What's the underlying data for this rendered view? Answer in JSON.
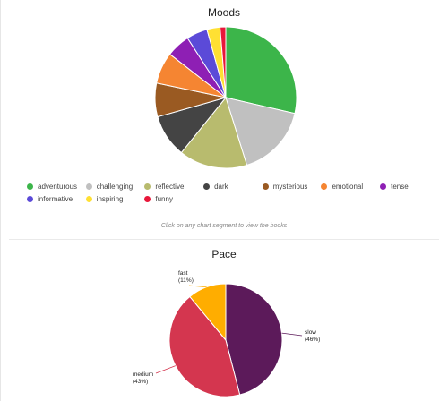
{
  "moods": {
    "title": "Moods",
    "hint": "Click on any chart segment to view the books"
  },
  "pace": {
    "title": "Pace"
  },
  "chart_data": [
    {
      "type": "pie",
      "title": "Moods",
      "legend_placement": "bottom",
      "categories": [
        "adventurous",
        "challenging",
        "reflective",
        "dark",
        "mysterious",
        "emotional",
        "tense",
        "informative",
        "inspiring",
        "funny"
      ],
      "values": [
        28.6,
        16.6,
        15.6,
        9.8,
        7.7,
        7.2,
        5.4,
        4.8,
        3.0,
        1.3
      ],
      "colors": [
        "#3cb54a",
        "#c0c0c0",
        "#b8bb6e",
        "#444444",
        "#9a5a22",
        "#f58532",
        "#8e1fb4",
        "#5b4ad8",
        "#ffe033",
        "#e8173a"
      ]
    },
    {
      "type": "pie",
      "title": "Pace",
      "categories": [
        "slow",
        "medium",
        "fast"
      ],
      "labels": [
        "slow",
        "medium",
        "fast"
      ],
      "percent_labels": [
        "(46%)",
        "(43%)",
        "(11%)"
      ],
      "values": [
        46,
        43,
        11
      ],
      "colors": [
        "#5c1a5a",
        "#d4364f",
        "#ffad00"
      ]
    }
  ]
}
